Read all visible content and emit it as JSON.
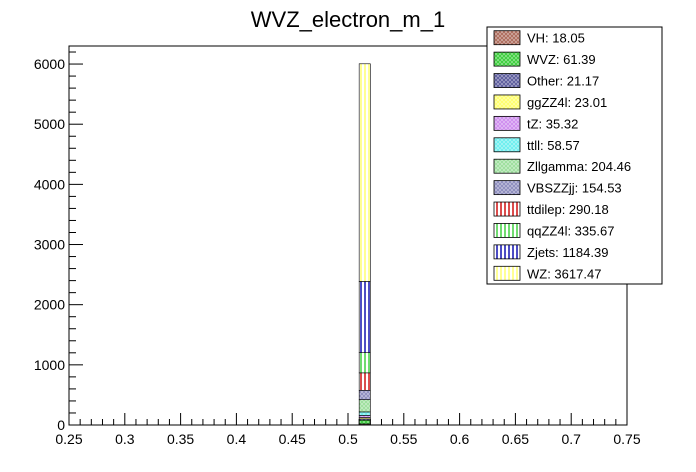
{
  "chart_data": {
    "type": "bar",
    "stacked": true,
    "title": "WVZ_electron_m_1",
    "xlabel": "",
    "ylabel": "",
    "xlim": [
      0.25,
      0.75
    ],
    "ylim": [
      0,
      6300
    ],
    "x_ticks": [
      "0.25",
      "0.3",
      "0.35",
      "0.4",
      "0.45",
      "0.5",
      "0.55",
      "0.6",
      "0.65",
      "0.7",
      "0.75"
    ],
    "y_ticks": [
      "0",
      "1000",
      "2000",
      "3000",
      "4000",
      "5000",
      "6000"
    ],
    "bin": [
      0.51,
      0.52
    ],
    "grid": false,
    "legend_position": "top-right",
    "series": [
      {
        "name": "WZ",
        "label": "WZ: 3617.47",
        "value": 3617.47,
        "color": "#ffff66",
        "pattern": "vert"
      },
      {
        "name": "Zjets",
        "label": "Zjets: 1184.39",
        "value": 1184.39,
        "color": "#0000aa",
        "pattern": "vert"
      },
      {
        "name": "qqZZ4l",
        "label": "qqZZ4l: 335.67",
        "value": 335.67,
        "color": "#33cc33",
        "pattern": "vert"
      },
      {
        "name": "ttdilep",
        "label": "ttdilep: 290.18",
        "value": 290.18,
        "color": "#cc0000",
        "pattern": "vert"
      },
      {
        "name": "VBSZZjj",
        "label": "VBSZZjj: 154.53",
        "value": 154.53,
        "color": "#8888bb",
        "pattern": "cross"
      },
      {
        "name": "Zllgamma",
        "label": "Zllgamma: 204.46",
        "value": 204.46,
        "color": "#99dd99",
        "pattern": "cross"
      },
      {
        "name": "ttll",
        "label": "ttll: 58.57",
        "value": 58.57,
        "color": "#66eeee",
        "pattern": "cross"
      },
      {
        "name": "tZ",
        "label": "tZ: 35.32",
        "value": 35.32,
        "color": "#cc88ee",
        "pattern": "cross"
      },
      {
        "name": "ggZZ4l",
        "label": "ggZZ4l: 23.01",
        "value": 23.01,
        "color": "#ffff66",
        "pattern": "cross"
      },
      {
        "name": "Other",
        "label": "Other: 21.17",
        "value": 21.17,
        "color": "#555599",
        "pattern": "cross"
      },
      {
        "name": "WVZ",
        "label": "WVZ: 61.39",
        "value": 61.39,
        "color": "#33cc33",
        "pattern": "cross"
      },
      {
        "name": "VH",
        "label": "VH: 18.05",
        "value": 18.05,
        "color": "#aa6655",
        "pattern": "cross"
      }
    ],
    "legend_order": [
      "VH",
      "WVZ",
      "Other",
      "ggZZ4l",
      "tZ",
      "ttll",
      "Zllgamma",
      "VBSZZjj",
      "ttdilep",
      "qqZZ4l",
      "Zjets",
      "WZ"
    ]
  }
}
